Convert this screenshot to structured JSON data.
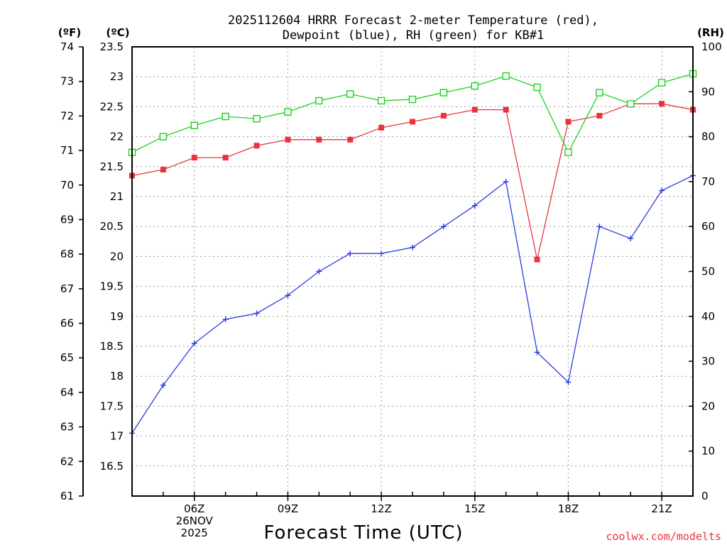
{
  "chart_data": {
    "type": "line",
    "title_lines": [
      "2025112604 HRRR Forecast 2-meter Temperature (red),",
      "Dewpoint (blue), RH (green) for KB#1"
    ],
    "xlabel": "Forecast Time (UTC)",
    "x_hours": [
      4,
      5,
      6,
      7,
      8,
      9,
      10,
      11,
      12,
      13,
      14,
      15,
      16,
      17,
      18,
      19,
      20,
      21,
      22
    ],
    "x_range": [
      4,
      22
    ],
    "x_ticks": [
      {
        "hour": 6,
        "lines": [
          "06Z",
          "26NOV",
          "2025"
        ]
      },
      {
        "hour": 9,
        "lines": [
          "09Z"
        ]
      },
      {
        "hour": 12,
        "lines": [
          "12Z"
        ]
      },
      {
        "hour": 15,
        "lines": [
          "15Z"
        ]
      },
      {
        "hour": 18,
        "lines": [
          "18Z"
        ]
      },
      {
        "hour": 21,
        "lines": [
          "21Z"
        ]
      }
    ],
    "axes": {
      "celsius": {
        "label": "(ºC)",
        "range": [
          16,
          23.5
        ],
        "ticks": [
          "16.5",
          "17",
          "17.5",
          "18",
          "18.5",
          "19",
          "19.5",
          "20",
          "20.5",
          "21",
          "21.5",
          "22",
          "22.5",
          "23",
          "23.5"
        ]
      },
      "fahrenheit": {
        "label": "(ºF)",
        "range": [
          61,
          74
        ],
        "ticks": [
          "61",
          "62",
          "63",
          "64",
          "65",
          "66",
          "67",
          "68",
          "69",
          "70",
          "71",
          "72",
          "73",
          "74"
        ]
      },
      "rh": {
        "label": "(RH)",
        "range": [
          0,
          100
        ],
        "ticks": [
          "0",
          "10",
          "20",
          "30",
          "40",
          "50",
          "60",
          "70",
          "80",
          "90",
          "100"
        ]
      }
    },
    "grid": true,
    "series": [
      {
        "name": "Temperature",
        "axis": "celsius",
        "color": "#e8343c",
        "marker": "filled-square",
        "values": [
          21.35,
          21.45,
          21.65,
          21.65,
          21.85,
          21.95,
          21.95,
          21.95,
          22.15,
          22.25,
          22.35,
          22.45,
          22.45,
          19.95,
          22.25,
          22.35,
          22.55,
          22.55,
          22.45
        ]
      },
      {
        "name": "Dewpoint",
        "axis": "celsius",
        "color": "#2b3be0",
        "marker": "plus",
        "values": [
          17.05,
          17.85,
          18.55,
          18.95,
          19.05,
          19.35,
          19.75,
          20.05,
          20.05,
          20.15,
          20.5,
          20.85,
          21.25,
          18.4,
          17.9,
          20.5,
          20.3,
          21.1,
          21.35
        ]
      },
      {
        "name": "RH",
        "axis": "rh",
        "color": "#1ed21e",
        "marker": "open-square",
        "values": [
          76.5,
          80,
          82.5,
          84.5,
          84,
          85.5,
          88,
          89.5,
          88,
          88.3,
          89.8,
          91.3,
          93.5,
          91,
          76.5,
          89.8,
          87.3,
          92,
          94
        ]
      }
    ]
  },
  "credit": "coolwx.com/modelts"
}
